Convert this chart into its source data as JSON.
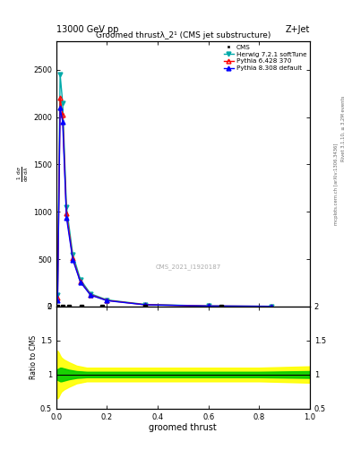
{
  "title_top": "13000 GeV pp",
  "title_right": "Z+Jet",
  "plot_title": "Groomed thrustλ_2¹ (CMS jet substructure)",
  "watermark": "CMS_2021_I1920187",
  "xlabel": "groomed thrust",
  "ylabel_ratio": "Ratio to CMS",
  "right_label": "Rivet 3.1.10, ≥ 3.2M events",
  "right_label2": "mcplots.cern.ch [arXiv:1306.3436]",
  "x_data": [
    0.005,
    0.015,
    0.025,
    0.04,
    0.065,
    0.095,
    0.135,
    0.2,
    0.35,
    0.6,
    0.85
  ],
  "herwig_y": [
    120,
    2450,
    2150,
    1050,
    550,
    285,
    135,
    70,
    22,
    6,
    2
  ],
  "pythia6_y": [
    90,
    2200,
    2020,
    980,
    510,
    265,
    125,
    65,
    19,
    5,
    2
  ],
  "pythia8_y": [
    70,
    2100,
    1950,
    940,
    495,
    258,
    120,
    62,
    18,
    5,
    2
  ],
  "ratio_x": [
    0.0,
    0.005,
    0.01,
    0.015,
    0.02,
    0.03,
    0.05,
    0.08,
    0.12,
    0.18,
    0.25,
    0.4,
    0.6,
    0.8,
    1.0
  ],
  "ratio_green_upper": [
    1.06,
    1.08,
    1.09,
    1.1,
    1.1,
    1.09,
    1.07,
    1.05,
    1.04,
    1.04,
    1.04,
    1.04,
    1.04,
    1.04,
    1.05
  ],
  "ratio_green_lower": [
    0.94,
    0.92,
    0.91,
    0.9,
    0.9,
    0.91,
    0.93,
    0.95,
    0.96,
    0.96,
    0.96,
    0.96,
    0.96,
    0.96,
    0.95
  ],
  "ratio_yellow_upper": [
    1.3,
    1.35,
    1.32,
    1.28,
    1.25,
    1.22,
    1.18,
    1.13,
    1.1,
    1.1,
    1.1,
    1.1,
    1.1,
    1.1,
    1.12
  ],
  "ratio_yellow_lower": [
    0.7,
    0.65,
    0.68,
    0.72,
    0.75,
    0.78,
    0.82,
    0.87,
    0.9,
    0.9,
    0.9,
    0.9,
    0.9,
    0.9,
    0.88
  ],
  "ylim_main": [
    0,
    2800
  ],
  "yticks_main": [
    0,
    500,
    1000,
    1500,
    2000,
    2500
  ],
  "ylim_ratio": [
    0.5,
    2.0
  ],
  "yticks_ratio": [
    0.5,
    1.0,
    1.5,
    2.0
  ],
  "xlim": [
    0.0,
    1.0
  ],
  "color_herwig": "#00AAAA",
  "color_pythia6": "#FF0000",
  "color_pythia8": "#0000FF",
  "color_cms": "#000000",
  "color_green": "#00CC00",
  "color_yellow": "#FFFF00"
}
